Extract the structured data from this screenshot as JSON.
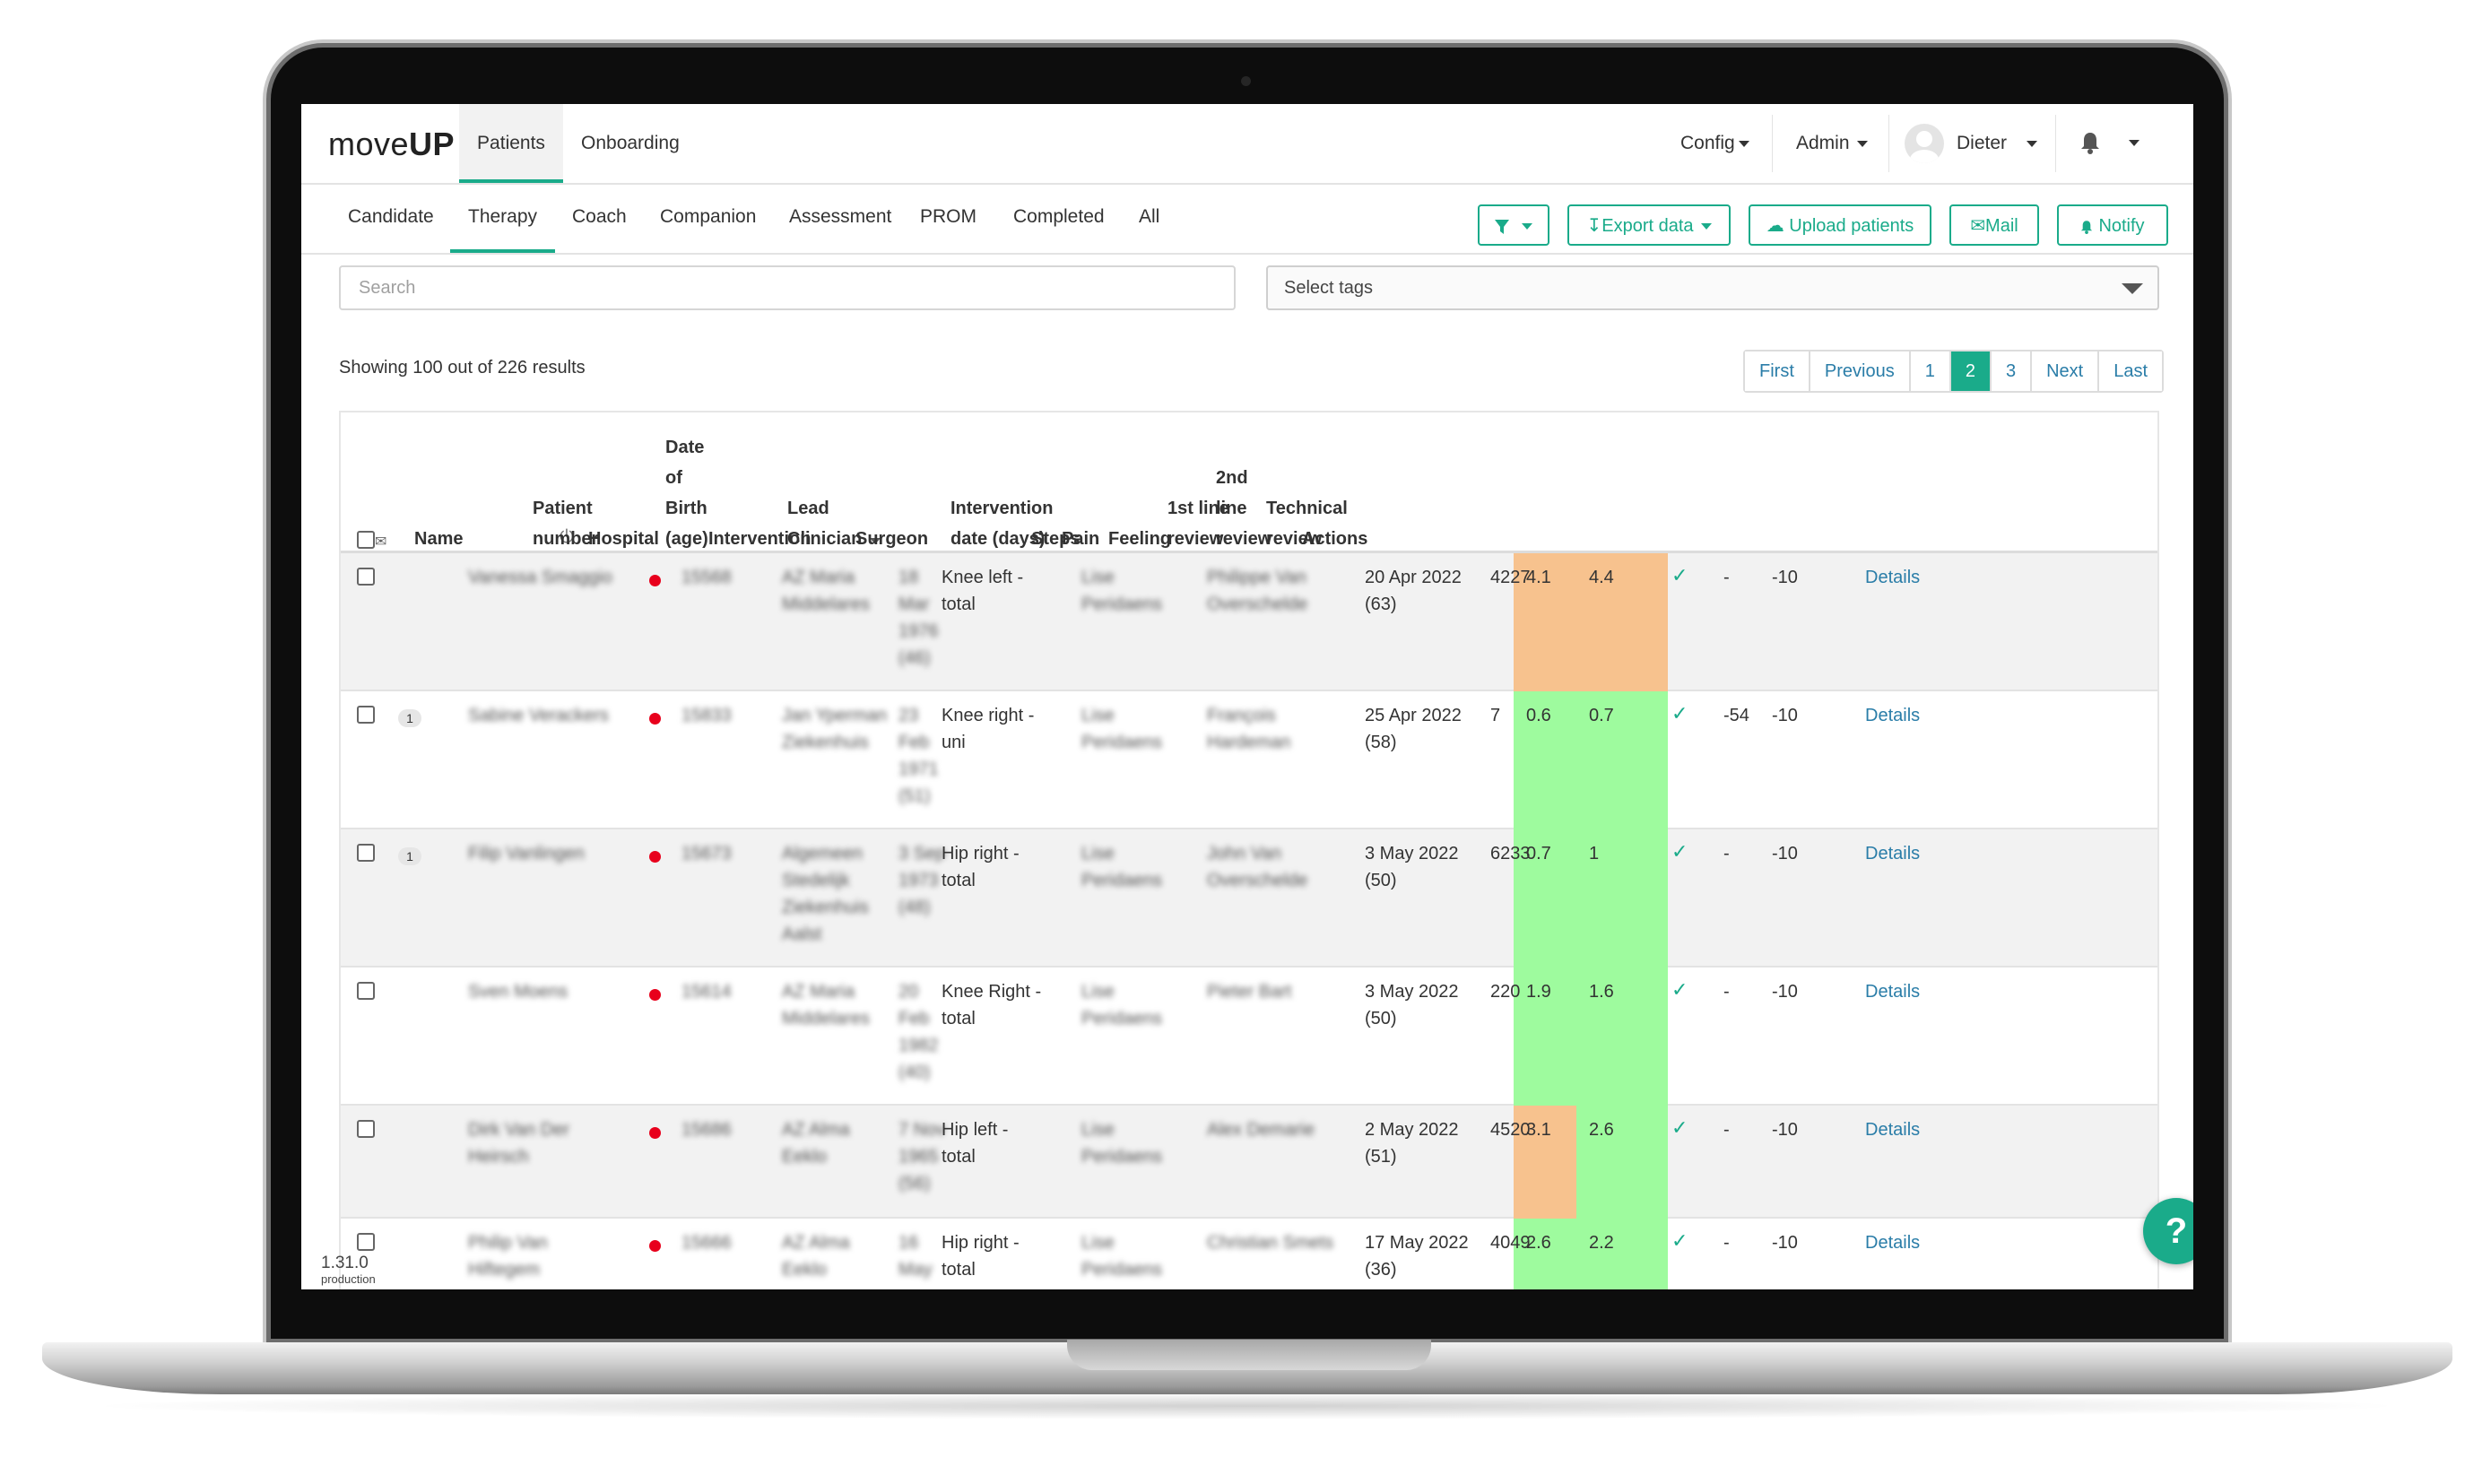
{
  "app": {
    "logo_light": "move",
    "logo_bold": "UP"
  },
  "topnav": {
    "tabs": [
      "Patients",
      "Onboarding"
    ],
    "config": "Config",
    "admin": "Admin",
    "user": "Dieter"
  },
  "subnav": {
    "tabs": [
      "Candidate",
      "Therapy",
      "Coach",
      "Companion",
      "Assessment",
      "PROM",
      "Completed",
      "All"
    ],
    "active_tab": "Therapy",
    "buttons": {
      "export": "Export data",
      "upload": "Upload patients",
      "mail": "Mail",
      "notify": "Notify"
    }
  },
  "search": {
    "placeholder": "Search"
  },
  "tags": {
    "placeholder": "Select tags"
  },
  "results_text": "Showing 100 out of 226 results",
  "pagination": {
    "items": [
      "First",
      "Previous",
      "1",
      "2",
      "3",
      "Next",
      "Last"
    ],
    "active": "2"
  },
  "table": {
    "headers": {
      "name": "Name",
      "patient_number": [
        "Patient",
        "number"
      ],
      "hospital": "Hospital",
      "dob": [
        "Date",
        "of",
        "Birth",
        "(age)"
      ],
      "intervention": "Intervention",
      "lead_clinician": [
        "Lead",
        "Clinician"
      ],
      "surgeon": "Surgeon",
      "intervention_date": [
        "Intervention",
        "date (days)"
      ],
      "steps": "Steps",
      "pain": "Pain",
      "feeling": "Feeling",
      "first_review": [
        "1st line",
        "review"
      ],
      "second_review": [
        "2nd",
        "line",
        "review"
      ],
      "technical_review": [
        "Technical",
        "review"
      ],
      "actions": "Actions"
    },
    "rows": [
      {
        "badge": "",
        "name": [
          "Vanessa Smaggio"
        ],
        "number": "15568",
        "hospital": [
          "AZ Maria",
          "Middelares"
        ],
        "dob": [
          "18",
          "Mar",
          "1976",
          "(46)"
        ],
        "intervention": [
          "Knee left -",
          "total"
        ],
        "clinician": [
          "Lise",
          "Peridaens"
        ],
        "surgeon": [
          "Philippe Van",
          "Overschelde"
        ],
        "date": [
          "20 Apr 2022",
          "(63)"
        ],
        "steps": "4227",
        "pain": "4.1",
        "feeling": "4.4",
        "pain_color": "#f7c28e",
        "feeling_color": "#f7c28e",
        "first_review": "✓",
        "second_review": "-",
        "technical_review": "-10",
        "action": "Details"
      },
      {
        "badge": "1",
        "name": [
          "Sabine Verackers"
        ],
        "number": "15833",
        "hospital": [
          "Jan Yperman",
          "Ziekenhuis"
        ],
        "dob": [
          "23",
          "Feb",
          "1971",
          "(51)"
        ],
        "intervention": [
          "Knee right -",
          "uni"
        ],
        "clinician": [
          "Lise",
          "Peridaens"
        ],
        "surgeon": [
          "François",
          "Hardeman"
        ],
        "date": [
          "25 Apr 2022",
          "(58)"
        ],
        "steps": "7",
        "pain": "0.6",
        "feeling": "0.7",
        "pain_color": "#9efb9e",
        "feeling_color": "#9efb9e",
        "first_review": "✓",
        "second_review": "-54",
        "technical_review": "-10",
        "action": "Details"
      },
      {
        "badge": "1",
        "name": [
          "Filip Vanlingen"
        ],
        "number": "15673",
        "hospital": [
          "Algemeen",
          "Stedelijk",
          "Ziekenhuis",
          "Aalst"
        ],
        "dob": [
          "3 Sep",
          "1973",
          "(48)"
        ],
        "intervention": [
          "Hip right -",
          "total"
        ],
        "clinician": [
          "Lise",
          "Peridaens"
        ],
        "surgeon": [
          "John Van",
          "Overschelde"
        ],
        "date": [
          "3 May 2022",
          "(50)"
        ],
        "steps": "6233",
        "pain": "0.7",
        "feeling": "1",
        "pain_color": "#9efb9e",
        "feeling_color": "#9efb9e",
        "first_review": "✓",
        "second_review": "-",
        "technical_review": "-10",
        "action": "Details"
      },
      {
        "badge": "",
        "name": [
          "Sven Moens"
        ],
        "number": "15614",
        "hospital": [
          "AZ Maria",
          "Middelares"
        ],
        "dob": [
          "20",
          "Feb",
          "1982",
          "(40)"
        ],
        "intervention": [
          "Knee Right -",
          "total"
        ],
        "clinician": [
          "Lise",
          "Peridaens"
        ],
        "surgeon": [
          "Pieter Bart"
        ],
        "date": [
          "3 May 2022",
          "(50)"
        ],
        "steps": "220",
        "pain": "1.9",
        "feeling": "1.6",
        "pain_color": "#9efb9e",
        "feeling_color": "#9efb9e",
        "first_review": "✓",
        "second_review": "-",
        "technical_review": "-10",
        "action": "Details"
      },
      {
        "badge": "",
        "name": [
          "Dirk Van Der",
          "Heirsch"
        ],
        "number": "15686",
        "hospital": [
          "AZ Alma",
          "Eeklo"
        ],
        "dob": [
          "7 Nov",
          "1965",
          "(56)"
        ],
        "intervention": [
          "Hip left -",
          "total"
        ],
        "clinician": [
          "Lise",
          "Peridaens"
        ],
        "surgeon": [
          "Alex Demarie"
        ],
        "date": [
          "2 May 2022",
          "(51)"
        ],
        "steps": "4520",
        "pain": "3.1",
        "feeling": "2.6",
        "pain_color": "#f7c28e",
        "feeling_color": "#9efb9e",
        "first_review": "✓",
        "second_review": "-",
        "technical_review": "-10",
        "action": "Details"
      },
      {
        "badge": "",
        "name": [
          "Philip Van",
          "Hiftegem"
        ],
        "number": "15666",
        "hospital": [
          "AZ Alma",
          "Eeklo"
        ],
        "dob": [
          "16",
          "May"
        ],
        "intervention": [
          "Hip right -",
          "total"
        ],
        "clinician": [
          "Lise",
          "Peridaens"
        ],
        "surgeon": [
          "Christian Smets"
        ],
        "date": [
          "17 May 2022",
          "(36)"
        ],
        "steps": "4049",
        "pain": "2.6",
        "feeling": "2.2",
        "pain_color": "#9efb9e",
        "feeling_color": "#9efb9e",
        "first_review": "✓",
        "second_review": "-",
        "technical_review": "-10",
        "action": "Details"
      }
    ]
  },
  "footer": {
    "version": "1.31.0",
    "environment": "production",
    "help": "?"
  }
}
